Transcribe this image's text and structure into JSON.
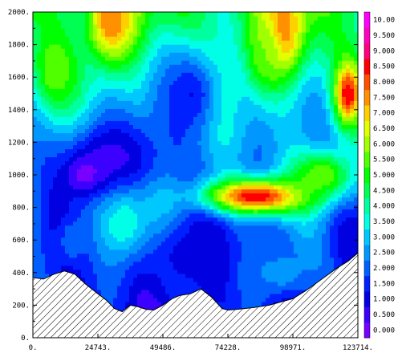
{
  "chart_data": {
    "type": "heatmap",
    "title": "",
    "xlabel": "",
    "ylabel": "",
    "x_ticks": [
      "0.",
      "24743.",
      "49486.",
      "74228.",
      "98971.",
      "123714."
    ],
    "x_tick_values": [
      0,
      24743,
      49486,
      74228,
      98971,
      123714
    ],
    "y_ticks": [
      "0.",
      "200.",
      "400.",
      "600.",
      "800.",
      "1000.",
      "1200.",
      "1400.",
      "1600.",
      "1800.",
      "2000."
    ],
    "y_tick_values": [
      0,
      200,
      400,
      600,
      800,
      1000,
      1200,
      1400,
      1600,
      1800,
      2000
    ],
    "xlim": [
      0,
      123714
    ],
    "ylim": [
      0,
      2000
    ],
    "colorbar": {
      "labels": [
        "0.000",
        "0.500",
        "1.000",
        "1.500",
        "2.000",
        "2.500",
        "3.000",
        "3.500",
        "4.000",
        "4.500",
        "5.000",
        "5.500",
        "6.000",
        "6.500",
        "7.000",
        "7.500",
        "8.000",
        "8.500",
        "9.000",
        "9.500",
        "10.00"
      ],
      "values": [
        0,
        0.5,
        1,
        1.5,
        2,
        2.5,
        3,
        3.5,
        4,
        4.5,
        5,
        5.5,
        6,
        6.5,
        7,
        7.5,
        8,
        8.5,
        9,
        9.5,
        10
      ],
      "colors": [
        "#7800ff",
        "#3c00ff",
        "#0000e0",
        "#0020ff",
        "#0060ff",
        "#0098ff",
        "#00c8ff",
        "#00ffe6",
        "#00ffa0",
        "#00ff50",
        "#00ff00",
        "#50ff00",
        "#a0ff00",
        "#e0ff00",
        "#ffd000",
        "#ff9000",
        "#ff5000",
        "#ff0000",
        "#ff0080",
        "#ff00c0",
        "#ff00ff"
      ]
    },
    "terrain_profile": {
      "x": [
        0,
        4000,
        8000,
        12000,
        16000,
        20000,
        24743,
        28000,
        31000,
        34000,
        37000,
        40000,
        43000,
        46000,
        49486,
        53000,
        56000,
        60000,
        64000,
        68000,
        72000,
        74228,
        78000,
        84000,
        90000,
        98971,
        104000,
        110000,
        116000,
        120000,
        123714
      ],
      "y": [
        370,
        360,
        390,
        410,
        390,
        330,
        270,
        230,
        180,
        160,
        200,
        190,
        175,
        170,
        200,
        240,
        260,
        270,
        300,
        250,
        180,
        170,
        175,
        185,
        200,
        240,
        290,
        360,
        430,
        470,
        520
      ]
    },
    "field_blobs": [
      {
        "x": 30000,
        "y": 1950,
        "rx": 9000,
        "ry": 250,
        "v": 8
      },
      {
        "x": 95000,
        "y": 1900,
        "rx": 9000,
        "ry": 300,
        "v": 8
      },
      {
        "x": 88000,
        "y": 1750,
        "rx": 6000,
        "ry": 200,
        "v": 6
      },
      {
        "x": 60000,
        "y": 1500,
        "rx": 12000,
        "ry": 300,
        "v": 1.5
      },
      {
        "x": 30000,
        "y": 1100,
        "rx": 20000,
        "ry": 250,
        "v": 0.8
      },
      {
        "x": 20000,
        "y": 1000,
        "rx": 8000,
        "ry": 120,
        "v": 0.2
      },
      {
        "x": 85000,
        "y": 870,
        "rx": 20000,
        "ry": 110,
        "v": 9
      },
      {
        "x": 110000,
        "y": 1000,
        "rx": 12000,
        "ry": 150,
        "v": 6
      },
      {
        "x": 120000,
        "y": 1500,
        "rx": 5000,
        "ry": 180,
        "v": 9
      },
      {
        "x": 8000,
        "y": 1650,
        "rx": 7000,
        "ry": 200,
        "v": 6
      },
      {
        "x": 35000,
        "y": 700,
        "rx": 10000,
        "ry": 200,
        "v": 4
      },
      {
        "x": 15000,
        "y": 600,
        "rx": 6000,
        "ry": 150,
        "v": 2.5
      },
      {
        "x": 60000,
        "y": 500,
        "rx": 15000,
        "ry": 200,
        "v": 1.2
      },
      {
        "x": 95000,
        "y": 400,
        "rx": 12000,
        "ry": 150,
        "v": 2.8
      }
    ]
  }
}
